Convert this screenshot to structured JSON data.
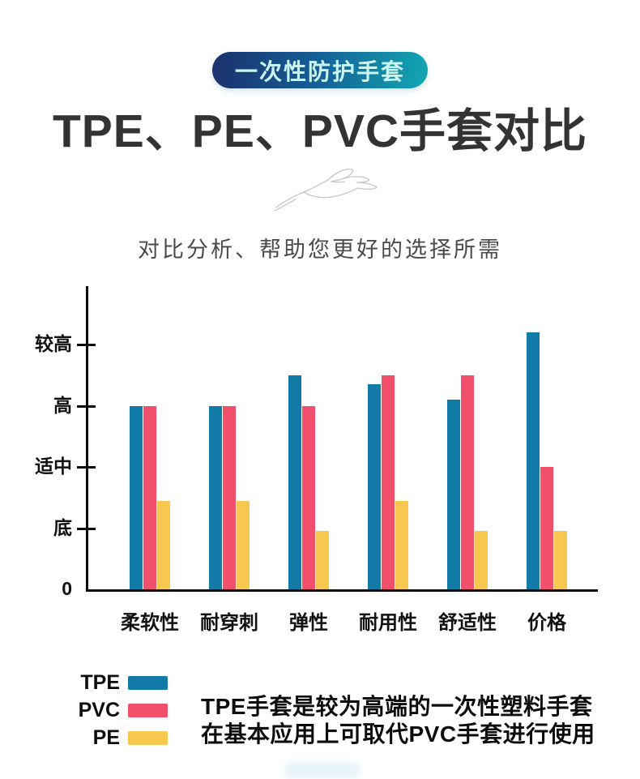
{
  "badge": {
    "label": "一次性防护手套"
  },
  "title": "TPE、PE、PVC手套对比",
  "subtitle": "对比分析、帮助您更好的选择所需",
  "colors": {
    "tpe_blue": "#127AA6",
    "pvc_pink": "#F1506C",
    "pe_yellow": "#F7C84F",
    "badge_gradient_start": "#1A356F",
    "badge_gradient_end": "#12A2B0",
    "axis_black": "#0d0d0d"
  },
  "chart_data": {
    "type": "bar",
    "categories": [
      "柔软性",
      "耐穿刺",
      "弹性",
      "耐用性",
      "舒适性",
      "价格"
    ],
    "series": [
      {
        "name": "TPE",
        "color": "#127AA6",
        "values": [
          3.0,
          3.0,
          3.5,
          3.35,
          3.1,
          4.2
        ]
      },
      {
        "name": "PVC",
        "color": "#F1506C",
        "values": [
          3.0,
          3.0,
          3.0,
          3.5,
          3.5,
          2.0
        ]
      },
      {
        "name": "PE",
        "color": "#F7C84F",
        "values": [
          1.45,
          1.45,
          0.95,
          1.45,
          0.95,
          0.95
        ]
      }
    ],
    "y_ticks": [
      {
        "value": 4,
        "label": "较高"
      },
      {
        "value": 3,
        "label": "高"
      },
      {
        "value": 2,
        "label": "适中"
      },
      {
        "value": 1,
        "label": "底"
      },
      {
        "value": 0,
        "label": "0"
      }
    ],
    "ylim": [
      0,
      5
    ],
    "xlabel": "",
    "ylabel": "",
    "title": "",
    "grid": false,
    "legend_position": "bottom-left"
  },
  "legend": {
    "items": [
      {
        "name": "TPE",
        "color": "#127AA6"
      },
      {
        "name": "PVC",
        "color": "#F1506C"
      },
      {
        "name": "PE",
        "color": "#F7C84F"
      }
    ]
  },
  "description": {
    "line1": "TPE手套是较为高端的一次性塑料手套",
    "line2": "在基本应用上可取代PVC手套进行使用"
  }
}
